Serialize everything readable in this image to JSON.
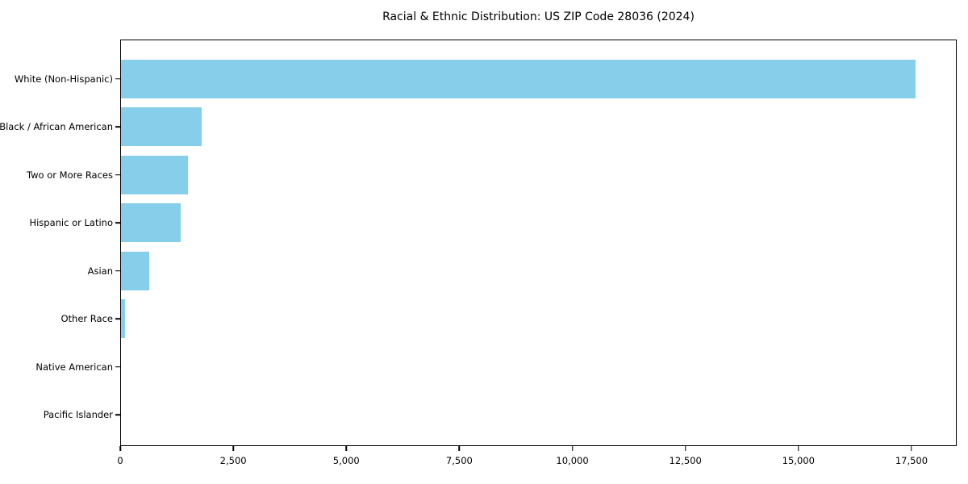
{
  "chart_data": {
    "type": "bar",
    "orientation": "horizontal",
    "title": "Racial & Ethnic Distribution: US ZIP Code 28036 (2024)",
    "categories": [
      "White (Non-Hispanic)",
      "Black / African American",
      "Two or More Races",
      "Hispanic or Latino",
      "Asian",
      "Other Race",
      "Native American",
      "Pacific Islander"
    ],
    "values": [
      17600,
      1780,
      1480,
      1315,
      625,
      90,
      0,
      0
    ],
    "xlabel": "",
    "ylabel": "",
    "xlim": [
      0,
      18500
    ],
    "xticks": {
      "values": [
        0,
        2500,
        5000,
        7500,
        10000,
        12500,
        15000,
        17500
      ],
      "labels": [
        "0",
        "2,500",
        "5,000",
        "7,500",
        "10,000",
        "12,500",
        "15,000",
        "17,500"
      ]
    },
    "grid": false,
    "legend": null,
    "bar_color": "#87CEEB",
    "background_color": "#ffffff",
    "spine_color": "#000000"
  }
}
